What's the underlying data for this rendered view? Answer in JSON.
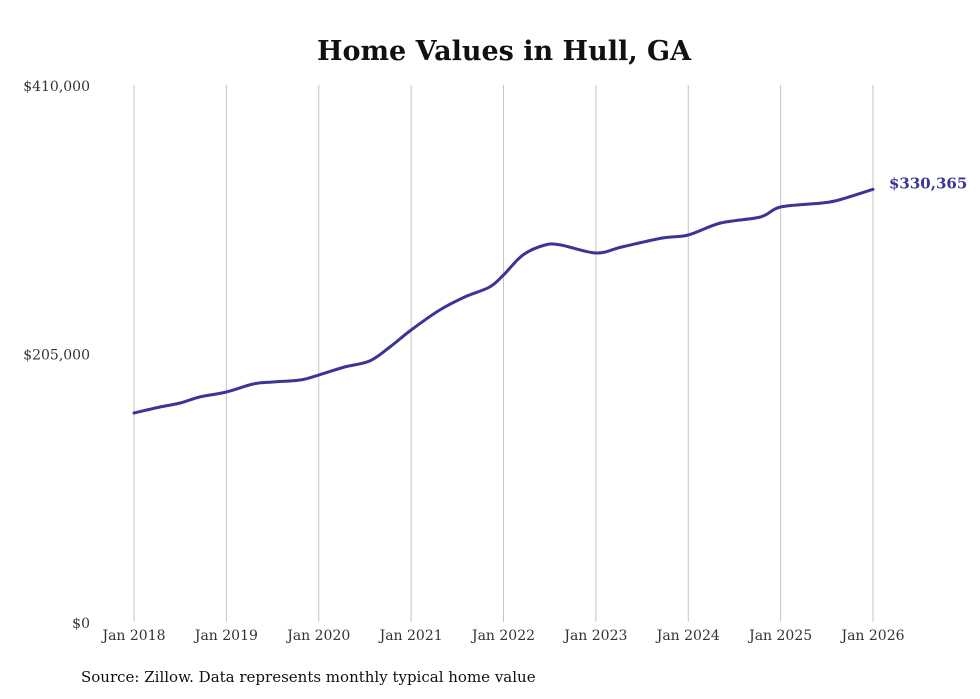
{
  "chart_data": {
    "type": "line",
    "title": "Home Values in Hull, GA",
    "xlabel": "",
    "ylabel": "",
    "ylim": [
      0,
      410000
    ],
    "yticks": [
      0,
      205000,
      410000
    ],
    "ytick_labels": [
      "$0",
      "$205,000",
      "$410,000"
    ],
    "xlim": [
      2018,
      2026
    ],
    "xticks": [
      2018,
      2019,
      2020,
      2021,
      2022,
      2023,
      2024,
      2025,
      2026
    ],
    "xtick_labels": [
      "Jan 2018",
      "Jan 2019",
      "Jan 2020",
      "Jan 2021",
      "Jan 2022",
      "Jan 2023",
      "Jan 2024",
      "Jan 2025",
      "Jan 2026"
    ],
    "grid": "vertical",
    "line_color": "#3b3499",
    "end_label": "$330,365",
    "series": [
      {
        "name": "Typical home value",
        "x": [
          2018.0,
          2018.28,
          2018.5,
          2018.71,
          2019.0,
          2019.29,
          2019.5,
          2019.8,
          2020.0,
          2020.28,
          2020.55,
          2020.77,
          2021.0,
          2021.31,
          2021.58,
          2021.85,
          2022.0,
          2022.21,
          2022.45,
          2022.62,
          2023.0,
          2023.28,
          2023.72,
          2024.0,
          2024.35,
          2024.78,
          2025.0,
          2025.45,
          2025.63,
          2026.0
        ],
        "values": [
          159570,
          164150,
          167210,
          171790,
          175600,
          181710,
          183240,
          184770,
          188580,
          194690,
          199270,
          209960,
          222940,
          238210,
          248140,
          255770,
          264930,
          280200,
          287840,
          287840,
          281730,
          286310,
          293180,
          295470,
          304640,
          309220,
          316850,
          319910,
          322200,
          330365
        ]
      }
    ]
  },
  "footer": {
    "source": "Source: Zillow. Data represents monthly typical home value"
  }
}
